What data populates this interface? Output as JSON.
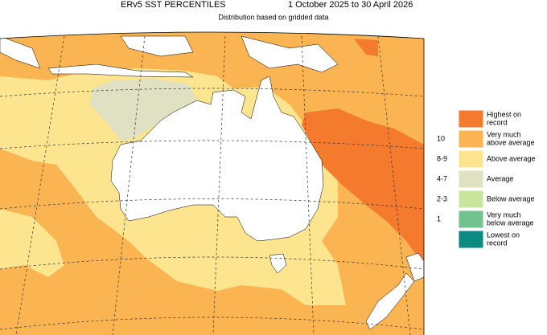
{
  "header": {
    "title": "ERv5 SST PERCENTILES",
    "period": "1 October 2025 to 30 April 2026",
    "subtitle": "Distribution based on gridded data"
  },
  "legend": {
    "items": [
      {
        "lines": [
          "Highest on",
          "record"
        ],
        "color": "#f47a2e"
      },
      {
        "lines": [
          "Very much",
          "above average"
        ],
        "decile": "10",
        "color": "#fbb452"
      },
      {
        "lines": [
          "Above average"
        ],
        "decile": "8-9",
        "color": "#fce58e"
      },
      {
        "lines": [
          "Average"
        ],
        "decile": "4-7",
        "color": "#e0e0c2"
      },
      {
        "lines": [
          "Below average"
        ],
        "decile": "2-3",
        "color": "#c8e69c"
      },
      {
        "lines": [
          "Very much",
          "below average"
        ],
        "decile": "1",
        "color": "#72c28e"
      },
      {
        "lines": [
          "Lowest on",
          "record"
        ],
        "color": "#0a8a80"
      }
    ]
  }
}
